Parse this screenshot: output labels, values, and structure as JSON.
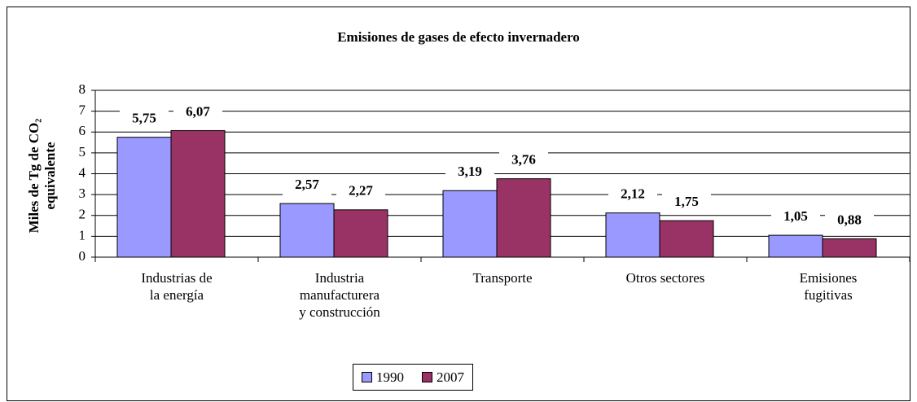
{
  "chart_data": {
    "type": "bar",
    "title": "Emisiones de gases de efecto invernadero",
    "y_label": "Miles de Tg de CO₂\nequivalente",
    "categories": [
      "Industrias de\nla energía",
      "Industria\nmanufacturera\ny construcción",
      "Transporte",
      "Otros sectores",
      "Emisiones\nfugitivas"
    ],
    "series": [
      {
        "name": "1990",
        "color": "#9999ff",
        "values": [
          5.75,
          2.57,
          3.19,
          2.12,
          1.05
        ],
        "value_labels": [
          "5,75",
          "2,57",
          "3,19",
          "2,12",
          "1,05"
        ]
      },
      {
        "name": "2007",
        "color": "#993366",
        "values": [
          6.07,
          2.27,
          3.76,
          1.75,
          0.88
        ],
        "value_labels": [
          "6,07",
          "2,27",
          "3,76",
          "1,75",
          "0,88"
        ]
      }
    ],
    "ylim": [
      0,
      8
    ],
    "yticks": [
      0,
      1,
      2,
      3,
      4,
      5,
      6,
      7,
      8
    ],
    "grid": true,
    "legend": "bottom"
  }
}
